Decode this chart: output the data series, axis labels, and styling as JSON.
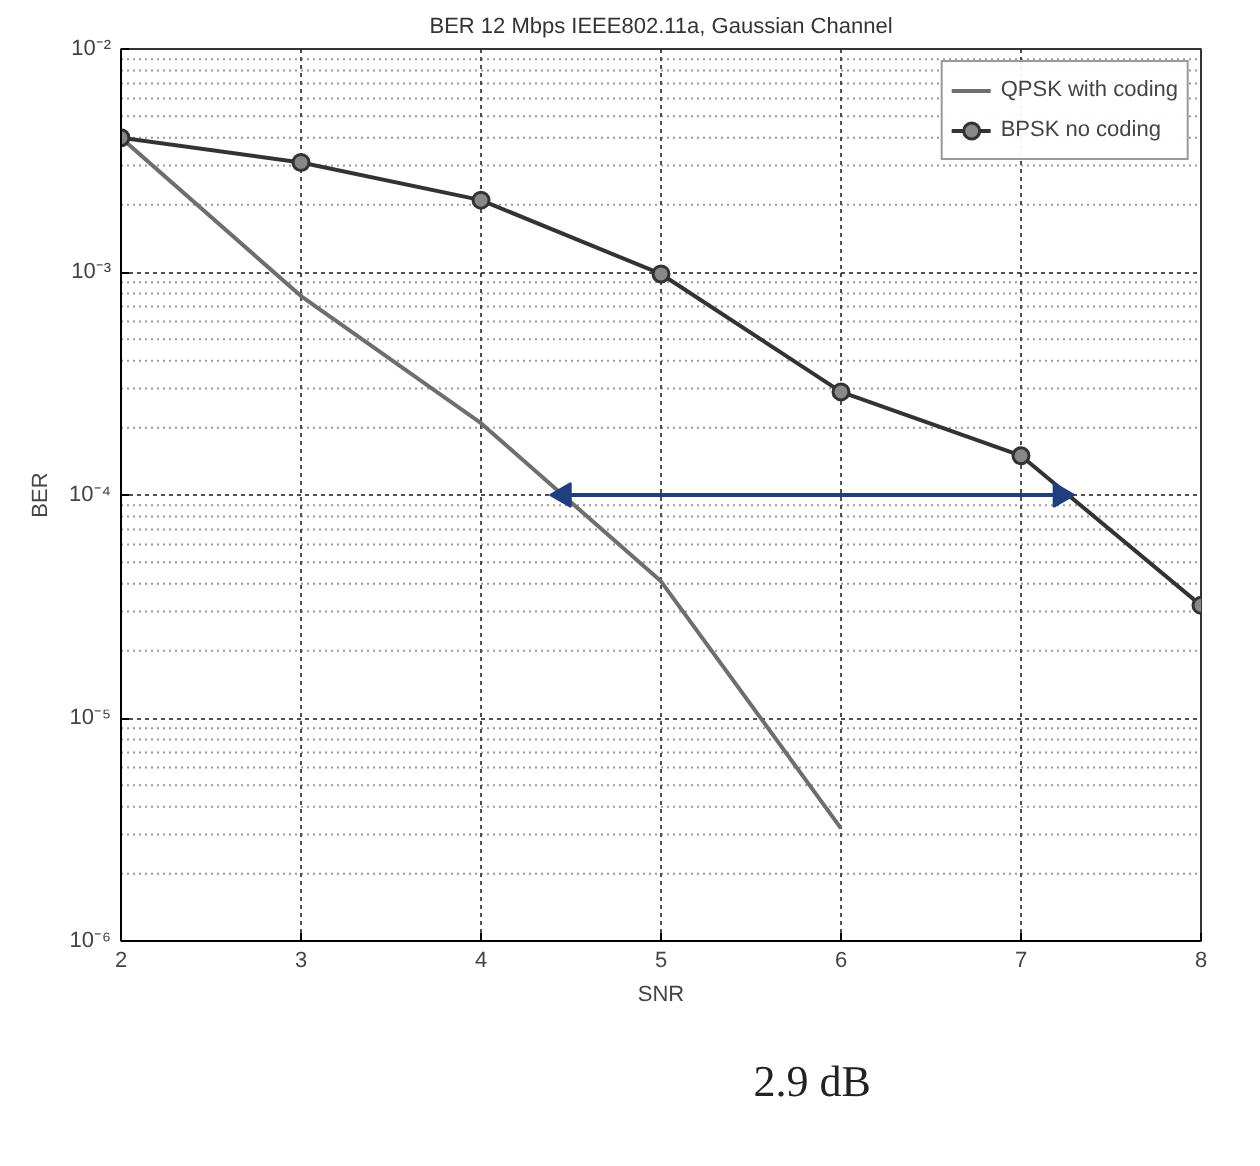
{
  "chart_data": {
    "type": "line",
    "title": "BER 12 Mbps IEEE802.11a, Gaussian Channel",
    "xlabel": "SNR",
    "ylabel": "BER",
    "x": [
      2,
      3,
      4,
      5,
      6,
      7,
      8
    ],
    "series": [
      {
        "name": "QPSK with coding",
        "color": "#6e6e6e",
        "marker": "none",
        "x": [
          2,
          3,
          4,
          5,
          6
        ],
        "values": [
          0.004,
          0.00078,
          0.00021,
          4.1e-05,
          3.2e-06
        ]
      },
      {
        "name": "BPSK no coding",
        "color": "#333333",
        "marker": "circle",
        "values": [
          0.004,
          0.0031,
          0.0021,
          0.00098,
          0.00029,
          0.00015,
          3.2e-05
        ]
      },
      {
        "color": "#1f3f7f",
        "marker": "triangle",
        "x": [
          4.46,
          7.22
        ],
        "values": [
          0.0001,
          0.0001
        ]
      }
    ],
    "log": "y",
    "xlim": [
      2,
      8
    ],
    "ylim": [
      1e-06,
      0.01
    ],
    "xticks": [
      2,
      3,
      4,
      5,
      6,
      7,
      8
    ],
    "yticks": [
      {
        "value": 1e-06,
        "label": "10⁻⁶"
      },
      {
        "value": 1e-05,
        "label": "10⁻⁵"
      },
      {
        "value": 0.0001,
        "label": "10⁻⁴"
      },
      {
        "value": 0.001,
        "label": "10⁻³"
      },
      {
        "value": 0.01,
        "label": "10⁻²"
      }
    ],
    "grid": true,
    "legend": "top right",
    "line_style": "solid",
    "annotations": [
      "2.9 dB"
    ]
  }
}
